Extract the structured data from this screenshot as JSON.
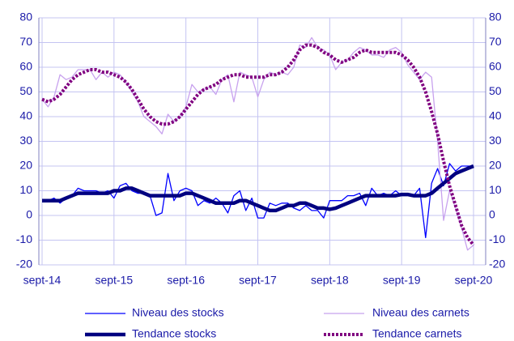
{
  "chart_data": {
    "type": "line",
    "categories": [
      "sept-14",
      null,
      null,
      null,
      null,
      null,
      null,
      null,
      null,
      null,
      null,
      null,
      "sept-15",
      null,
      null,
      null,
      null,
      null,
      null,
      null,
      null,
      null,
      null,
      null,
      "sept-16",
      null,
      null,
      null,
      null,
      null,
      null,
      null,
      null,
      null,
      null,
      null,
      "sept-17",
      null,
      null,
      null,
      null,
      null,
      null,
      null,
      null,
      null,
      null,
      null,
      "sept-18",
      null,
      null,
      null,
      null,
      null,
      null,
      null,
      null,
      null,
      null,
      null,
      "sept-19",
      null,
      null,
      null,
      null,
      null,
      null,
      null,
      null,
      null,
      null,
      null,
      "sept-20"
    ],
    "series": [
      {
        "name": "Niveau des stocks",
        "color": "#0000ff",
        "style": "thin",
        "values": [
          6,
          6,
          7,
          5,
          7,
          8,
          11,
          10,
          10,
          10,
          9,
          10,
          7,
          12,
          13,
          10,
          9,
          9,
          8,
          0,
          1,
          17,
          6,
          10,
          11,
          10,
          4,
          6,
          5,
          7,
          5,
          1,
          8,
          10,
          2,
          7,
          -1,
          -1,
          5,
          4,
          5,
          5,
          3,
          2,
          4,
          2,
          2,
          -1,
          6,
          6,
          6,
          8,
          8,
          9,
          4,
          11,
          8,
          9,
          8,
          10,
          8,
          9,
          8,
          11,
          -9,
          13,
          19,
          12,
          21,
          18,
          20,
          20,
          20
        ]
      },
      {
        "name": "Niveau des carnets",
        "color": "#c8a2ee",
        "style": "thin",
        "values": [
          47,
          44,
          48,
          57,
          55,
          56,
          59,
          59,
          59,
          55,
          58,
          56,
          58,
          57,
          54,
          50,
          46,
          40,
          38,
          36,
          33,
          41,
          38,
          40,
          44,
          53,
          50,
          51,
          52,
          49,
          55,
          57,
          46,
          58,
          57,
          56,
          48,
          55,
          58,
          57,
          58,
          57,
          60,
          69,
          68,
          72,
          68,
          67,
          65,
          59,
          62,
          63,
          66,
          68,
          67,
          65,
          65,
          64,
          67,
          68,
          66,
          61,
          58,
          55,
          58,
          56,
          30,
          -2,
          10,
          3,
          -5,
          -14,
          -12
        ]
      },
      {
        "name": "Tendance stocks",
        "color": "#000080",
        "style": "thick",
        "values": [
          6,
          6,
          6,
          6,
          7,
          8,
          9,
          9,
          9,
          9,
          9,
          9,
          10,
          10,
          11,
          11,
          10,
          9,
          8,
          8,
          8,
          8,
          8,
          8,
          9,
          9,
          8,
          7,
          6,
          5,
          5,
          5,
          5,
          6,
          6,
          5,
          4,
          3,
          2,
          2,
          3,
          4,
          4,
          5,
          5,
          4,
          3,
          3,
          2.5,
          3,
          4,
          5,
          6,
          7,
          8,
          8,
          8,
          8,
          8,
          8,
          8.5,
          8.5,
          8,
          8,
          8,
          9,
          11,
          13,
          15,
          17,
          18,
          19,
          20
        ]
      },
      {
        "name": "Tendance carnets",
        "color": "#800080",
        "style": "dotted",
        "values": [
          47,
          46,
          47,
          49,
          52,
          55,
          57,
          58,
          59,
          59,
          58,
          58,
          57,
          56,
          54,
          51,
          47,
          43,
          40,
          38,
          37,
          37,
          38,
          40,
          43,
          46,
          49,
          51,
          52,
          53,
          55,
          56,
          57,
          57,
          56,
          56,
          56,
          56,
          57,
          57,
          58,
          60,
          63,
          67,
          69,
          69,
          68,
          66,
          65,
          63,
          62,
          63,
          64,
          66,
          67,
          66,
          66,
          66,
          66,
          66,
          65,
          63,
          60,
          56,
          50,
          42,
          33,
          22,
          12,
          4,
          -4,
          -9,
          -12
        ]
      }
    ],
    "ylim": [
      -20,
      80
    ],
    "yticks": [
      -20,
      -10,
      0,
      10,
      20,
      30,
      40,
      50,
      60,
      70,
      80
    ],
    "y2lim": [
      -20,
      80
    ],
    "y2ticks": [
      -20,
      -10,
      0,
      10,
      20,
      30,
      40,
      50,
      60,
      70,
      80
    ],
    "grid": true
  }
}
